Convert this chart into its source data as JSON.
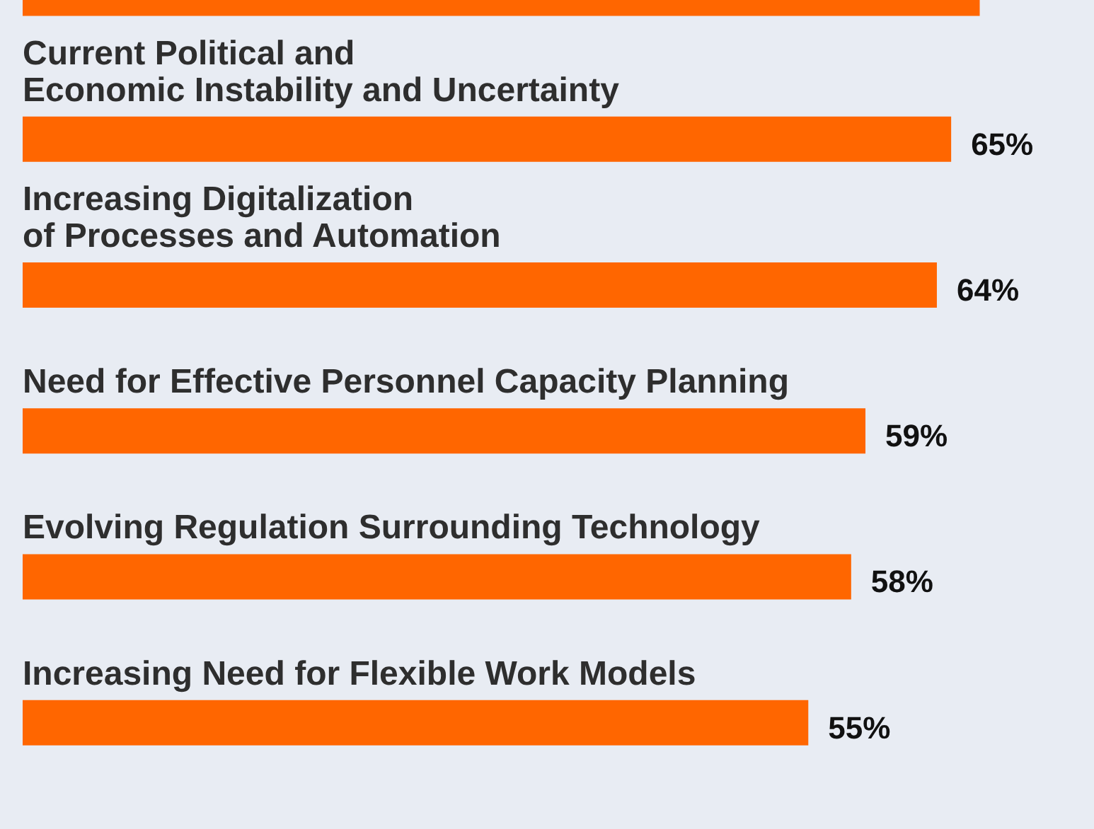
{
  "chart_data": {
    "type": "bar",
    "orientation": "horizontal",
    "categories": [
      null,
      "Current Political and\nEconomic Instability and Uncertainty",
      "Increasing Digitalization\nof Processes and Automation",
      "Need for Effective Personnel Capacity Planning",
      "Evolving Regulation Surrounding Technology",
      "Increasing Need for Flexible Work Models"
    ],
    "values": [
      67,
      65,
      64,
      59,
      58,
      55
    ],
    "value_labels": [
      null,
      "65%",
      "64%",
      "59%",
      "58%",
      "55%"
    ],
    "color": "#ff6600",
    "xlim": [
      0,
      75
    ],
    "tick_labels": false
  }
}
